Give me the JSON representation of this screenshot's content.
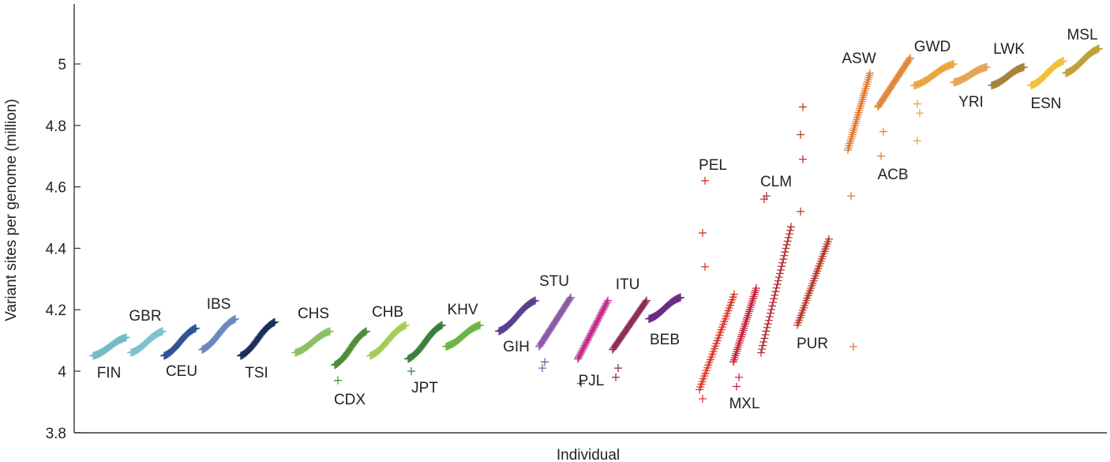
{
  "chart_data": {
    "type": "scatter",
    "xlabel": "Individual",
    "ylabel": "Variant sites per genome (million)",
    "ylim": [
      3.8,
      5.2
    ],
    "yticks": [
      3.8,
      4,
      4.2,
      4.4,
      4.6,
      4.8,
      5
    ],
    "grid": false,
    "legend": "none",
    "marker": "plus",
    "series": [
      {
        "name": "FIN",
        "color": "#72bcc3",
        "y_range": [
          4.05,
          4.11
        ],
        "outliers": []
      },
      {
        "name": "GBR",
        "color": "#7ec1cf",
        "y_range": [
          4.06,
          4.13
        ],
        "outliers": []
      },
      {
        "name": "CEU",
        "color": "#2f5394",
        "y_range": [
          4.05,
          4.14
        ],
        "outliers": []
      },
      {
        "name": "IBS",
        "color": "#6a89bd",
        "y_range": [
          4.07,
          4.17
        ],
        "outliers": []
      },
      {
        "name": "TSI",
        "color": "#1e2c5c",
        "y_range": [
          4.05,
          4.16
        ],
        "outliers": []
      },
      {
        "name": "CHS",
        "color": "#8dc063",
        "y_range": [
          4.06,
          4.13
        ],
        "outliers": []
      },
      {
        "name": "CDX",
        "color": "#4f8d3d",
        "y_range": [
          4.02,
          4.13
        ],
        "outliers": [
          3.97
        ]
      },
      {
        "name": "CHB",
        "color": "#a7cc55",
        "y_range": [
          4.05,
          4.15
        ],
        "outliers": []
      },
      {
        "name": "JPT",
        "color": "#3d7f3a",
        "y_range": [
          4.04,
          4.15
        ],
        "outliers": [
          4.0
        ]
      },
      {
        "name": "KHV",
        "color": "#6bb544",
        "y_range": [
          4.08,
          4.15
        ],
        "outliers": []
      },
      {
        "name": "GIH",
        "color": "#5a3e8e",
        "y_range": [
          4.13,
          4.23
        ],
        "outliers": []
      },
      {
        "name": "STU",
        "color": "#8a5aa7",
        "y_range": [
          4.08,
          4.24
        ],
        "outliers": [
          4.01,
          4.03
        ]
      },
      {
        "name": "PJL",
        "color": "#c2298b",
        "y_range": [
          4.04,
          4.23
        ],
        "outliers": [
          3.96
        ]
      },
      {
        "name": "ITU",
        "color": "#8b2c57",
        "y_range": [
          4.07,
          4.23
        ],
        "outliers": [
          3.98,
          4.01
        ]
      },
      {
        "name": "BEB",
        "color": "#6c2a82",
        "y_range": [
          4.17,
          4.24
        ],
        "outliers": []
      },
      {
        "name": "PEL",
        "color": "#d93a2b",
        "y_range": [
          3.94,
          4.25
        ],
        "outliers": [
          3.91,
          4.34,
          4.45,
          4.62
        ]
      },
      {
        "name": "MXL",
        "color": "#c9283f",
        "y_range": [
          4.03,
          4.27
        ],
        "outliers": [
          3.95,
          3.98
        ]
      },
      {
        "name": "CLM",
        "color": "#b8343a",
        "y_range": [
          4.06,
          4.47
        ],
        "outliers": [
          4.56,
          4.57
        ]
      },
      {
        "name": "PUR",
        "color": "#b73a2c",
        "y_range": [
          4.15,
          4.43
        ],
        "outliers": [
          4.52,
          4.69,
          4.77,
          4.86
        ]
      },
      {
        "name": "ASW",
        "color": "#e07b33",
        "y_range": [
          4.72,
          4.97
        ],
        "outliers": [
          4.57,
          4.08
        ]
      },
      {
        "name": "ACB",
        "color": "#e2873a",
        "y_range": [
          4.86,
          5.02
        ],
        "outliers": [
          4.7,
          4.78
        ]
      },
      {
        "name": "GWD",
        "color": "#e8a63d",
        "y_range": [
          4.93,
          5.0
        ],
        "outliers": [
          4.75,
          4.84,
          4.87
        ]
      },
      {
        "name": "YRI",
        "color": "#e6a555",
        "y_range": [
          4.94,
          4.99
        ],
        "outliers": []
      },
      {
        "name": "LWK",
        "color": "#a8823a",
        "y_range": [
          4.93,
          4.99
        ],
        "outliers": []
      },
      {
        "name": "ESN",
        "color": "#f1c03e",
        "y_range": [
          4.93,
          5.01
        ],
        "outliers": []
      },
      {
        "name": "MSL",
        "color": "#c2a13a",
        "y_range": [
          4.97,
          5.05
        ],
        "outliers": []
      }
    ]
  }
}
